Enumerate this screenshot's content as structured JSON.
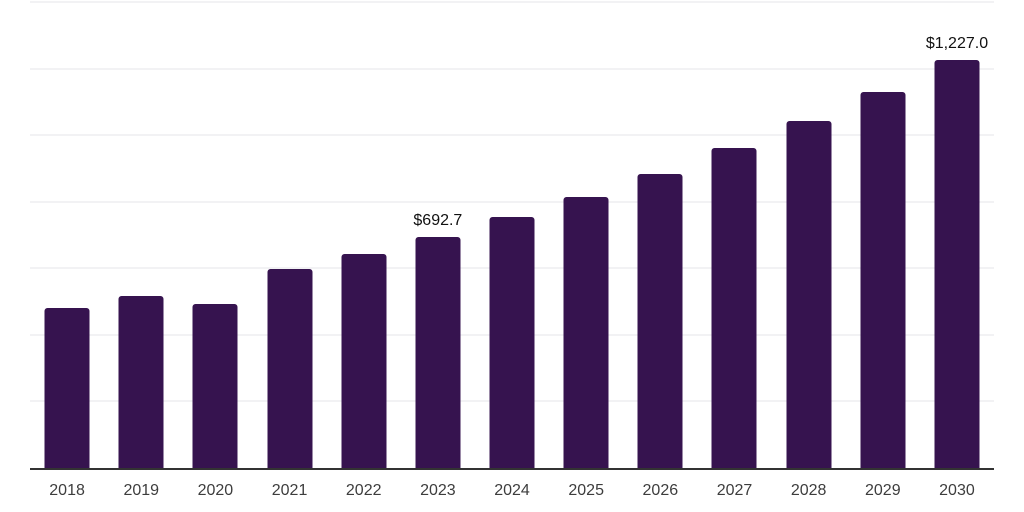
{
  "chart_data": {
    "type": "bar",
    "title": "",
    "xlabel": "",
    "ylabel": "",
    "categories": [
      "2018",
      "2019",
      "2020",
      "2021",
      "2022",
      "2023",
      "2024",
      "2025",
      "2026",
      "2027",
      "2028",
      "2029",
      "2030"
    ],
    "values": [
      481.6,
      517.5,
      493.6,
      598.3,
      643.2,
      692.7,
      753.9,
      813.7,
      882.5,
      960.3,
      1044.0,
      1130.8,
      1227.0
    ],
    "data_labels": [
      null,
      null,
      null,
      null,
      null,
      "$692.7",
      null,
      null,
      null,
      null,
      null,
      null,
      "$1,227.0"
    ],
    "ylim": [
      0,
      1400
    ],
    "gridline_step": 200,
    "grid": true,
    "legend_position": "none",
    "colors": {
      "bar": "#36134f",
      "axis": "#333333",
      "gridline": "#f2f2f4",
      "tick_label": "#3d3d3d",
      "data_label": "#111111",
      "background": "#ffffff"
    }
  }
}
